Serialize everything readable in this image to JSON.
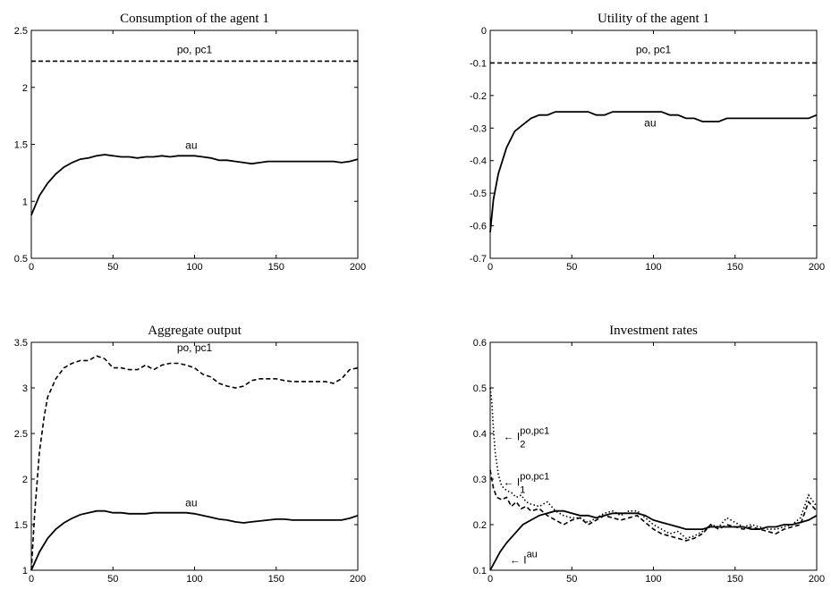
{
  "chart_data": [
    {
      "type": "line",
      "title": "Consumption of the agent 1",
      "xlim": [
        0,
        200
      ],
      "ylim": [
        0.5,
        2.5
      ],
      "xticks": [
        0,
        50,
        100,
        150,
        200
      ],
      "yticks": [
        0.5,
        1,
        1.5,
        2,
        2.5
      ],
      "ytick_labels": [
        "0.5",
        "1",
        "1.5",
        "2",
        "2.5"
      ],
      "series": [
        {
          "name": "po, pc1",
          "style": "dashed",
          "x": [
            0,
            200
          ],
          "y": [
            2.23,
            2.23
          ]
        },
        {
          "name": "au",
          "style": "solid",
          "x": [
            0,
            5,
            10,
            15,
            20,
            25,
            30,
            35,
            40,
            45,
            50,
            55,
            60,
            65,
            70,
            75,
            80,
            85,
            90,
            95,
            100,
            105,
            110,
            115,
            120,
            125,
            130,
            135,
            140,
            145,
            150,
            155,
            160,
            165,
            170,
            175,
            180,
            185,
            190,
            195,
            200
          ],
          "y": [
            0.88,
            1.05,
            1.16,
            1.24,
            1.3,
            1.34,
            1.37,
            1.38,
            1.4,
            1.41,
            1.4,
            1.39,
            1.39,
            1.38,
            1.39,
            1.39,
            1.4,
            1.39,
            1.4,
            1.4,
            1.4,
            1.39,
            1.38,
            1.36,
            1.36,
            1.35,
            1.34,
            1.33,
            1.34,
            1.35,
            1.35,
            1.35,
            1.35,
            1.35,
            1.35,
            1.35,
            1.35,
            1.35,
            1.34,
            1.35,
            1.37
          ]
        }
      ],
      "annotations": [
        {
          "text": "po, pc1",
          "x": 100,
          "y": 2.3
        },
        {
          "text": "au",
          "x": 98,
          "y": 1.46
        }
      ]
    },
    {
      "type": "line",
      "title": "Utility of the agent 1",
      "xlim": [
        0,
        200
      ],
      "ylim": [
        -0.7,
        0
      ],
      "xticks": [
        0,
        50,
        100,
        150,
        200
      ],
      "yticks": [
        -0.7,
        -0.6,
        -0.5,
        -0.4,
        -0.3,
        -0.2,
        -0.1,
        0
      ],
      "ytick_labels": [
        "-0.7",
        "-0.6",
        "-0.5",
        "-0.4",
        "-0.3",
        "-0.2",
        "-0.1",
        "0"
      ],
      "series": [
        {
          "name": "po, pc1",
          "style": "dashed",
          "x": [
            0,
            200
          ],
          "y": [
            -0.1,
            -0.1
          ]
        },
        {
          "name": "au",
          "style": "solid",
          "x": [
            0,
            2,
            5,
            10,
            15,
            20,
            25,
            30,
            35,
            40,
            45,
            50,
            55,
            60,
            65,
            70,
            75,
            80,
            85,
            90,
            95,
            100,
            105,
            110,
            115,
            120,
            125,
            130,
            135,
            140,
            145,
            150,
            155,
            160,
            165,
            170,
            175,
            180,
            185,
            190,
            195,
            200
          ],
          "y": [
            -0.62,
            -0.52,
            -0.44,
            -0.36,
            -0.31,
            -0.29,
            -0.27,
            -0.26,
            -0.26,
            -0.25,
            -0.25,
            -0.25,
            -0.25,
            -0.25,
            -0.26,
            -0.26,
            -0.25,
            -0.25,
            -0.25,
            -0.25,
            -0.25,
            -0.25,
            -0.25,
            -0.26,
            -0.26,
            -0.27,
            -0.27,
            -0.28,
            -0.28,
            -0.28,
            -0.27,
            -0.27,
            -0.27,
            -0.27,
            -0.27,
            -0.27,
            -0.27,
            -0.27,
            -0.27,
            -0.27,
            -0.27,
            -0.26
          ]
        }
      ],
      "annotations": [
        {
          "text": "po, pc1",
          "x": 100,
          "y": -0.07
        },
        {
          "text": "au",
          "x": 98,
          "y": -0.295
        }
      ]
    },
    {
      "type": "line",
      "title": "Aggregate output",
      "xlim": [
        0,
        200
      ],
      "ylim": [
        1,
        3.5
      ],
      "xticks": [
        0,
        50,
        100,
        150,
        200
      ],
      "yticks": [
        1,
        1.5,
        2,
        2.5,
        3,
        3.5
      ],
      "ytick_labels": [
        "1",
        "1.5",
        "2",
        "2.5",
        "3",
        "3.5"
      ],
      "series": [
        {
          "name": "po, pc1",
          "style": "dashed",
          "x": [
            0,
            2,
            5,
            8,
            10,
            15,
            20,
            25,
            30,
            35,
            40,
            45,
            50,
            55,
            60,
            65,
            70,
            75,
            80,
            85,
            90,
            95,
            100,
            105,
            110,
            115,
            120,
            125,
            130,
            135,
            140,
            145,
            150,
            155,
            160,
            165,
            170,
            175,
            180,
            185,
            190,
            195,
            200
          ],
          "y": [
            1.0,
            1.6,
            2.3,
            2.7,
            2.9,
            3.1,
            3.22,
            3.27,
            3.3,
            3.3,
            3.35,
            3.32,
            3.22,
            3.22,
            3.2,
            3.2,
            3.25,
            3.2,
            3.25,
            3.27,
            3.27,
            3.25,
            3.22,
            3.15,
            3.12,
            3.05,
            3.02,
            3.0,
            3.02,
            3.08,
            3.1,
            3.1,
            3.1,
            3.08,
            3.07,
            3.07,
            3.07,
            3.07,
            3.07,
            3.05,
            3.1,
            3.2,
            3.22
          ]
        },
        {
          "name": "au",
          "style": "solid",
          "x": [
            0,
            5,
            10,
            15,
            20,
            25,
            30,
            35,
            40,
            45,
            50,
            55,
            60,
            65,
            70,
            75,
            80,
            85,
            90,
            95,
            100,
            105,
            110,
            115,
            120,
            125,
            130,
            135,
            140,
            145,
            150,
            155,
            160,
            165,
            170,
            175,
            180,
            185,
            190,
            195,
            200
          ],
          "y": [
            1.0,
            1.2,
            1.35,
            1.45,
            1.52,
            1.57,
            1.61,
            1.63,
            1.65,
            1.65,
            1.63,
            1.63,
            1.62,
            1.62,
            1.62,
            1.63,
            1.63,
            1.63,
            1.63,
            1.63,
            1.62,
            1.6,
            1.58,
            1.56,
            1.55,
            1.53,
            1.52,
            1.53,
            1.54,
            1.55,
            1.56,
            1.56,
            1.55,
            1.55,
            1.55,
            1.55,
            1.55,
            1.55,
            1.55,
            1.57,
            1.6
          ]
        }
      ],
      "annotations": [
        {
          "text": "po, pc1",
          "x": 100,
          "y": 3.4
        },
        {
          "text": "au",
          "x": 98,
          "y": 1.7
        }
      ]
    },
    {
      "type": "line",
      "title": "Investment rates",
      "xlim": [
        0,
        200
      ],
      "ylim": [
        0.1,
        0.6
      ],
      "xticks": [
        0,
        50,
        100,
        150,
        200
      ],
      "yticks": [
        0.1,
        0.2,
        0.3,
        0.4,
        0.5,
        0.6
      ],
      "ytick_labels": [
        "0.1",
        "0.2",
        "0.3",
        "0.4",
        "0.5",
        "0.6"
      ],
      "series": [
        {
          "name": "I2 po,pc1",
          "style": "dotted",
          "x": [
            0,
            1,
            2,
            3,
            5,
            7,
            10,
            13,
            16,
            19,
            22,
            25,
            30,
            35,
            40,
            45,
            50,
            55,
            60,
            65,
            70,
            75,
            80,
            85,
            90,
            95,
            100,
            105,
            110,
            115,
            120,
            125,
            130,
            135,
            140,
            145,
            150,
            155,
            160,
            165,
            170,
            175,
            180,
            185,
            190,
            195,
            200
          ],
          "y": [
            0.5,
            0.47,
            0.41,
            0.36,
            0.31,
            0.285,
            0.275,
            0.27,
            0.26,
            0.265,
            0.25,
            0.245,
            0.24,
            0.25,
            0.23,
            0.22,
            0.215,
            0.215,
            0.205,
            0.215,
            0.225,
            0.23,
            0.22,
            0.23,
            0.23,
            0.215,
            0.2,
            0.19,
            0.18,
            0.185,
            0.17,
            0.175,
            0.185,
            0.2,
            0.195,
            0.215,
            0.205,
            0.195,
            0.2,
            0.195,
            0.19,
            0.19,
            0.195,
            0.2,
            0.215,
            0.265,
            0.24
          ]
        },
        {
          "name": "I1 po,pc1",
          "style": "dashed",
          "x": [
            0,
            2,
            4,
            7,
            10,
            13,
            16,
            19,
            22,
            25,
            30,
            35,
            40,
            45,
            50,
            55,
            60,
            65,
            70,
            75,
            80,
            85,
            90,
            95,
            100,
            105,
            110,
            115,
            120,
            125,
            130,
            135,
            140,
            145,
            150,
            155,
            160,
            165,
            170,
            175,
            180,
            185,
            190,
            195,
            200
          ],
          "y": [
            0.32,
            0.28,
            0.26,
            0.255,
            0.26,
            0.24,
            0.25,
            0.235,
            0.24,
            0.23,
            0.235,
            0.22,
            0.21,
            0.2,
            0.21,
            0.215,
            0.2,
            0.21,
            0.22,
            0.215,
            0.21,
            0.215,
            0.22,
            0.205,
            0.19,
            0.18,
            0.175,
            0.17,
            0.165,
            0.17,
            0.18,
            0.2,
            0.19,
            0.2,
            0.195,
            0.19,
            0.195,
            0.19,
            0.185,
            0.18,
            0.19,
            0.195,
            0.2,
            0.25,
            0.23
          ]
        },
        {
          "name": "I au",
          "style": "solid",
          "x": [
            0,
            3,
            6,
            10,
            15,
            20,
            25,
            30,
            35,
            40,
            45,
            50,
            55,
            60,
            65,
            70,
            75,
            80,
            85,
            90,
            95,
            100,
            105,
            110,
            115,
            120,
            125,
            130,
            135,
            140,
            145,
            150,
            155,
            160,
            165,
            170,
            175,
            180,
            185,
            190,
            195,
            200
          ],
          "y": [
            0.1,
            0.12,
            0.14,
            0.16,
            0.18,
            0.2,
            0.21,
            0.22,
            0.225,
            0.23,
            0.23,
            0.225,
            0.22,
            0.22,
            0.215,
            0.22,
            0.225,
            0.225,
            0.225,
            0.225,
            0.22,
            0.21,
            0.205,
            0.2,
            0.195,
            0.19,
            0.19,
            0.19,
            0.195,
            0.195,
            0.195,
            0.195,
            0.195,
            0.19,
            0.19,
            0.195,
            0.195,
            0.2,
            0.2,
            0.205,
            0.21,
            0.22
          ]
        }
      ],
      "annotations": [
        {
          "text": "← I",
          "sub": "2",
          "sup": "po,pc1",
          "x": 8,
          "y": 0.385
        },
        {
          "text": "← I",
          "sub": "1",
          "sup": "po,pc1",
          "x": 8,
          "y": 0.285
        },
        {
          "text": "← I",
          "sup": "au",
          "x": 12,
          "y": 0.115
        }
      ]
    }
  ]
}
